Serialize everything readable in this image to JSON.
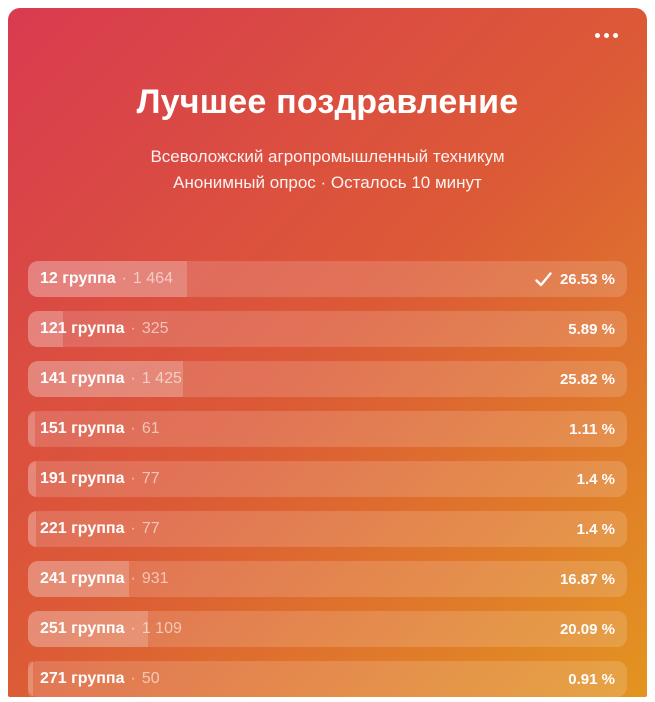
{
  "theme": {
    "gradient_start": "#d93b50",
    "gradient_mid": "#dc5a36",
    "gradient_end": "#e39420",
    "text_color": "#ffffff"
  },
  "poll": {
    "title": "Лучшее поздравление",
    "subtitle": "Всеволожский агропромышленный техникум",
    "meta": "Анонимный опрос · Осталось 10 минут",
    "separator": "·",
    "menu_icon": "ellipsis-horizontal",
    "options": [
      {
        "label": "12 группа",
        "votes": "1 464",
        "percent": "26.53 %",
        "pct": 26.53,
        "voted": true
      },
      {
        "label": "121 группа",
        "votes": "325",
        "percent": "5.89 %",
        "pct": 5.89,
        "voted": false
      },
      {
        "label": "141 группа",
        "votes": "1 425",
        "percent": "25.82 %",
        "pct": 25.82,
        "voted": false
      },
      {
        "label": "151 группа",
        "votes": "61",
        "percent": "1.11 %",
        "pct": 1.11,
        "voted": false
      },
      {
        "label": "191 группа",
        "votes": "77",
        "percent": "1.4 %",
        "pct": 1.4,
        "voted": false
      },
      {
        "label": "221 группа",
        "votes": "77",
        "percent": "1.4 %",
        "pct": 1.4,
        "voted": false
      },
      {
        "label": "241 группа",
        "votes": "931",
        "percent": "16.87 %",
        "pct": 16.87,
        "voted": false
      },
      {
        "label": "251 группа",
        "votes": "1 109",
        "percent": "20.09 %",
        "pct": 20.09,
        "voted": false
      },
      {
        "label": "271 группа",
        "votes": "50",
        "percent": "0.91 %",
        "pct": 0.91,
        "voted": false
      }
    ]
  }
}
